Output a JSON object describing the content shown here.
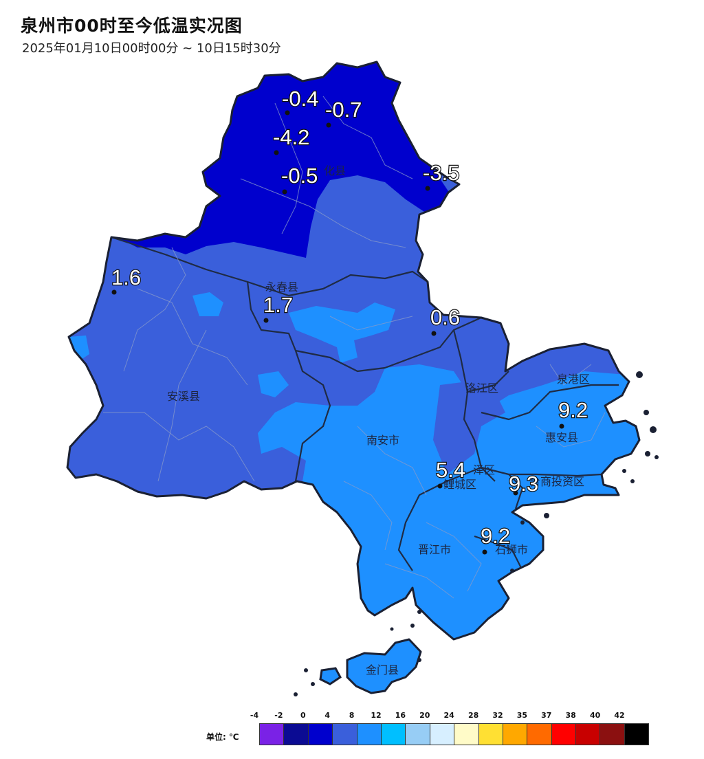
{
  "title": "泉州市00时至今低温实况图",
  "subtitle": "2025年01月10日00时00分 ~ 10日15时30分",
  "places": {
    "dehua": "化县",
    "yongchun": "永春县",
    "anxi": "安溪县",
    "nanan": "南安市",
    "luojiang": "洛江区",
    "quangang": "泉港区",
    "huian": "惠安县",
    "taishang": "台商投资区",
    "fengze": "泽区",
    "licheng": "鲤城区",
    "jinjiang": "晋江市",
    "shishi": "石狮市",
    "jinmen": "金门县"
  },
  "stations": [
    {
      "id": "s1",
      "value": "-0.4"
    },
    {
      "id": "s2",
      "value": "-0.7"
    },
    {
      "id": "s3",
      "value": "-4.2"
    },
    {
      "id": "s4",
      "value": "-0.5"
    },
    {
      "id": "s5",
      "value": "-3.5"
    },
    {
      "id": "s6",
      "value": "1.6"
    },
    {
      "id": "s7",
      "value": "1.7"
    },
    {
      "id": "s8",
      "value": "0.6"
    },
    {
      "id": "s9",
      "value": "9.2"
    },
    {
      "id": "s10",
      "value": "5.4"
    },
    {
      "id": "s11",
      "value": "9.3"
    },
    {
      "id": "s12",
      "value": "9.2"
    }
  ],
  "legend": {
    "unit": "单位: ℃",
    "ticks": [
      "-4",
      "-2",
      "0",
      "4",
      "8",
      "12",
      "16",
      "20",
      "24",
      "28",
      "32",
      "35",
      "37",
      "38",
      "40",
      "42"
    ],
    "colors": [
      "#7a22e6",
      "#0b0b93",
      "#0000cd",
      "#3a5fdb",
      "#1e90ff",
      "#00bfff",
      "#97cdf5",
      "#d7efff",
      "#fffbc8",
      "#ffe033",
      "#ffa800",
      "#ff6a00",
      "#ff0000",
      "#c80000",
      "#8b1010",
      "#000000"
    ]
  },
  "colors": {
    "cold": "#0000cd",
    "cool": "#3a5fdb",
    "mild": "#1e90ff"
  }
}
